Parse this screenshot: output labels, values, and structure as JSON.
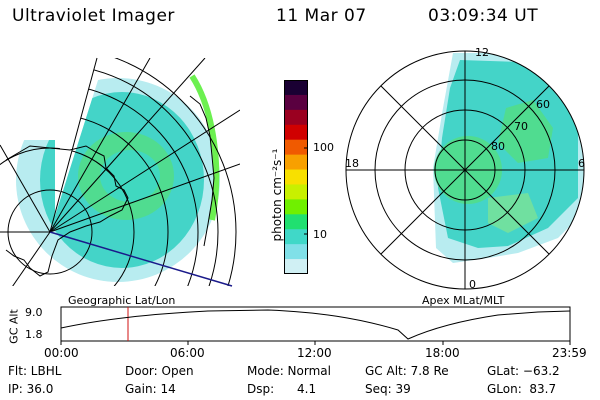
{
  "header": {
    "title": "Ultraviolet Imager",
    "date": "11 Mar 07",
    "time": "03:09:34 UT"
  },
  "left_panel": {
    "caption": "Geographic Lat/Lon"
  },
  "right_panel": {
    "caption": "Apex MLat/MLT",
    "mlt_labels": {
      "top": "12",
      "left": "18",
      "right": "6",
      "bottom": "0"
    },
    "lat_labels": [
      "60",
      "70",
      "80"
    ]
  },
  "colorbar": {
    "unit_label": "photon cm⁻²s⁻¹",
    "ticks": [
      "100",
      "10"
    ],
    "colors": [
      "#1a0033",
      "#5a0040",
      "#9a0020",
      "#d00000",
      "#f05a00",
      "#f8a000",
      "#f8e000",
      "#c8f000",
      "#70f000",
      "#20e070",
      "#40d8c8",
      "#80e0e8",
      "#d0f0f4"
    ]
  },
  "altitude_plot": {
    "ylabel": "GC Alt",
    "ymax": "9.0",
    "ymin": "1.8",
    "xticks": [
      "00:00",
      "06:00",
      "12:00",
      "18:00",
      "23:59"
    ],
    "marker_time_hours": 3.16
  },
  "info": {
    "flt": "Flt: LBHL",
    "ip": "IP: 36.0",
    "door": "Door: Open",
    "gain": "Gain: 14",
    "mode": "Mode: Normal",
    "dsp": "Dsp:      4.1",
    "gc_alt": "GC Alt: 7.8 Re",
    "seq": "Seq: 39",
    "glat": "GLat: −63.2",
    "glon": "GLon:  83.7"
  }
}
